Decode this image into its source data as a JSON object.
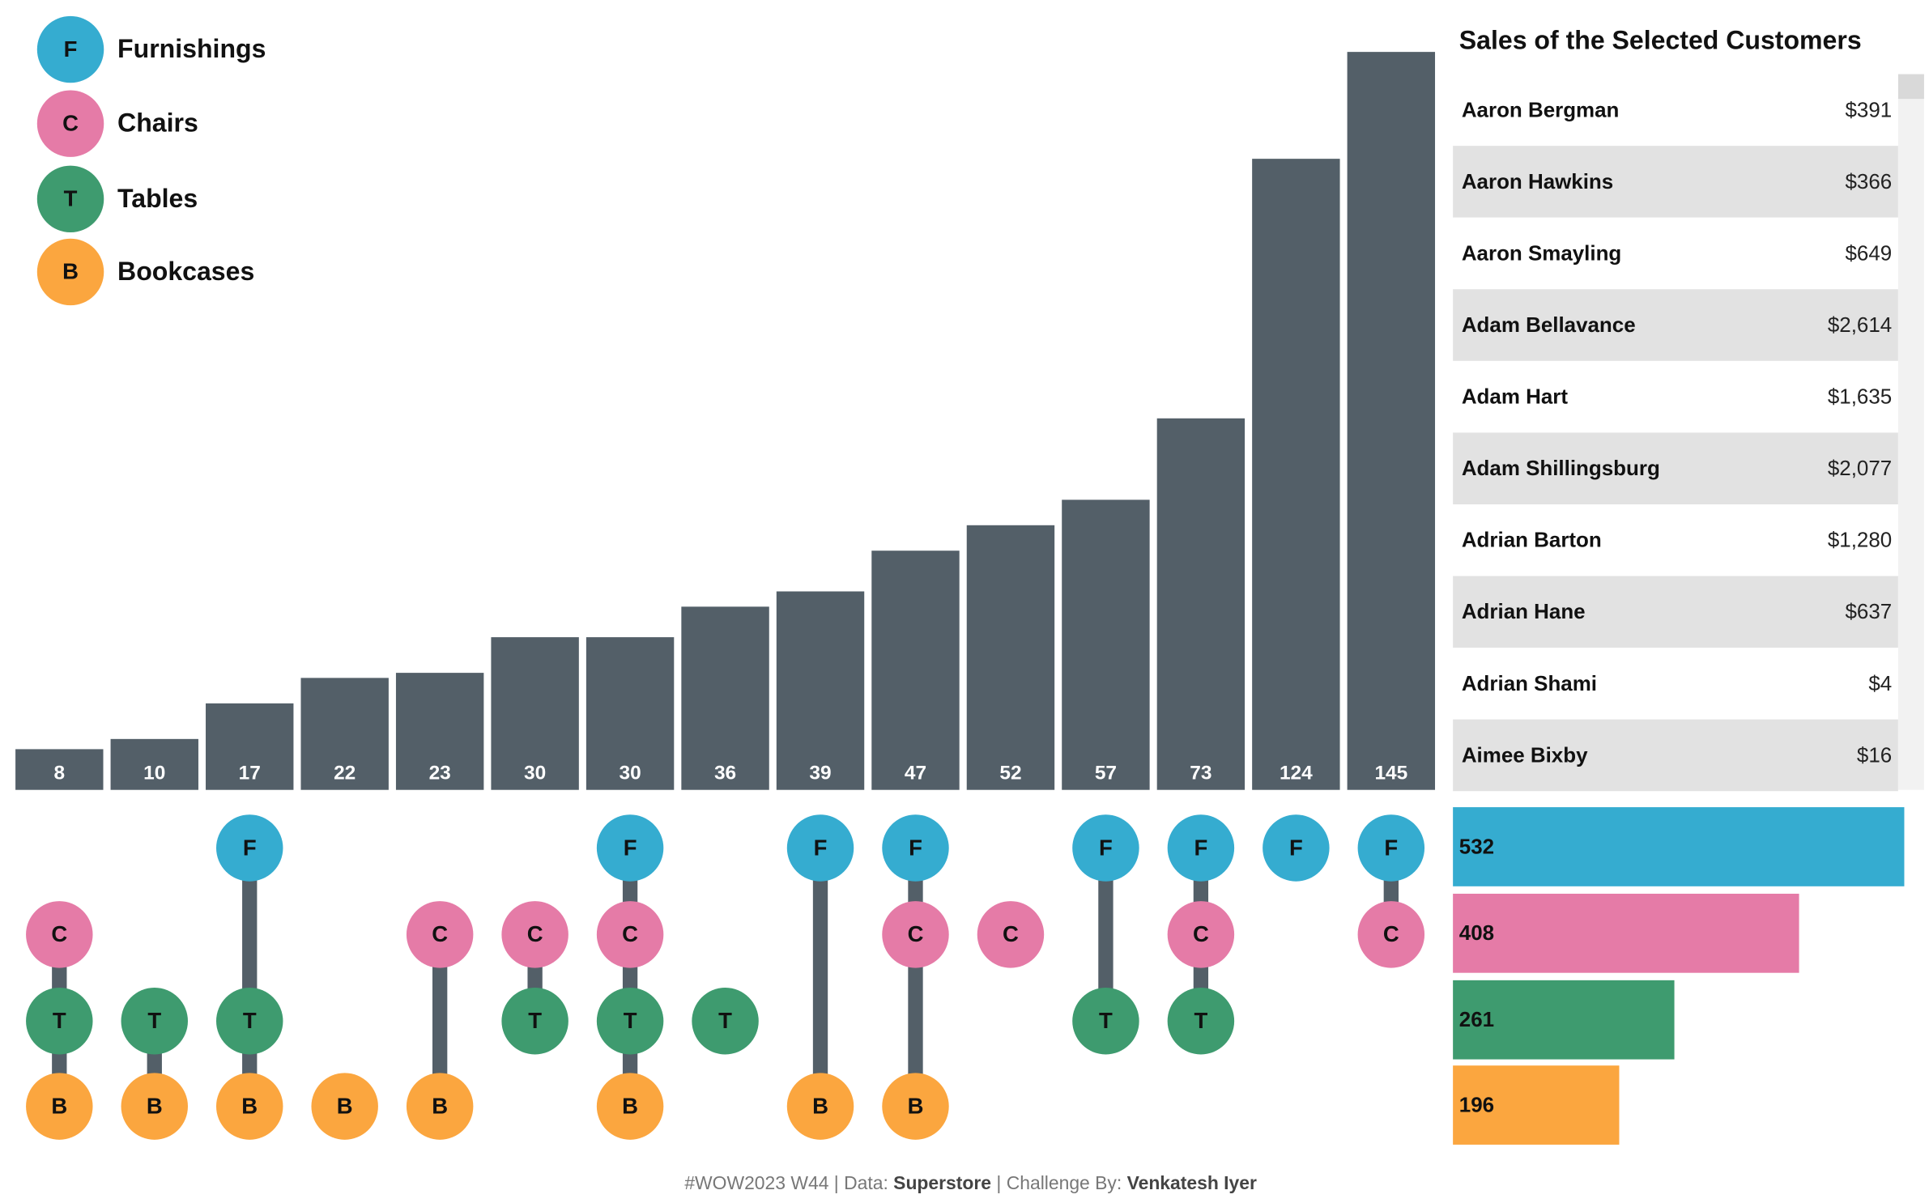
{
  "chart_data": {
    "type": "upset",
    "bar_color": "#535f68",
    "sets": [
      {
        "name": "Furnishings",
        "letter": "F",
        "color": "#35acd0",
        "size": 532
      },
      {
        "name": "Chairs",
        "letter": "C",
        "color": "#e57ba7",
        "size": 408
      },
      {
        "name": "Tables",
        "letter": "T",
        "color": "#3e9b6f",
        "size": 261
      },
      {
        "name": "Bookcases",
        "letter": "B",
        "color": "#fba63f",
        "size": 196
      }
    ],
    "intersections": [
      {
        "sets": [
          "C",
          "T",
          "B"
        ],
        "value": 8
      },
      {
        "sets": [
          "T",
          "B"
        ],
        "value": 10
      },
      {
        "sets": [
          "F",
          "T",
          "B"
        ],
        "value": 17
      },
      {
        "sets": [
          "B"
        ],
        "value": 22
      },
      {
        "sets": [
          "C",
          "B"
        ],
        "value": 23
      },
      {
        "sets": [
          "C",
          "T"
        ],
        "value": 30
      },
      {
        "sets": [
          "F",
          "C",
          "T",
          "B"
        ],
        "value": 30
      },
      {
        "sets": [
          "T"
        ],
        "value": 36
      },
      {
        "sets": [
          "F",
          "B"
        ],
        "value": 39
      },
      {
        "sets": [
          "F",
          "C",
          "B"
        ],
        "value": 47
      },
      {
        "sets": [
          "C"
        ],
        "value": 52
      },
      {
        "sets": [
          "F",
          "T"
        ],
        "value": 57
      },
      {
        "sets": [
          "F",
          "C",
          "T"
        ],
        "value": 73
      },
      {
        "sets": [
          "F"
        ],
        "value": 124
      },
      {
        "sets": [
          "F",
          "C"
        ],
        "value": 145
      }
    ]
  },
  "table": {
    "title": "Sales of the Selected Customers",
    "rows": [
      [
        "Aaron Bergman",
        "$391"
      ],
      [
        "Aaron Hawkins",
        "$366"
      ],
      [
        "Aaron Smayling",
        "$649"
      ],
      [
        "Adam Bellavance",
        "$2,614"
      ],
      [
        "Adam Hart",
        "$1,635"
      ],
      [
        "Adam Shillingsburg",
        "$2,077"
      ],
      [
        "Adrian Barton",
        "$1,280"
      ],
      [
        "Adrian Hane",
        "$637"
      ],
      [
        "Adrian Shami",
        "$4"
      ],
      [
        "Aimee Bixby",
        "$16"
      ]
    ]
  },
  "footer": [
    {
      "text": "#WOW2023 W44 | Data: ",
      "bold": false
    },
    {
      "text": "Superstore",
      "bold": true
    },
    {
      "text": " | Challenge By: ",
      "bold": false
    },
    {
      "text": "Venkatesh Iyer",
      "bold": true
    }
  ]
}
